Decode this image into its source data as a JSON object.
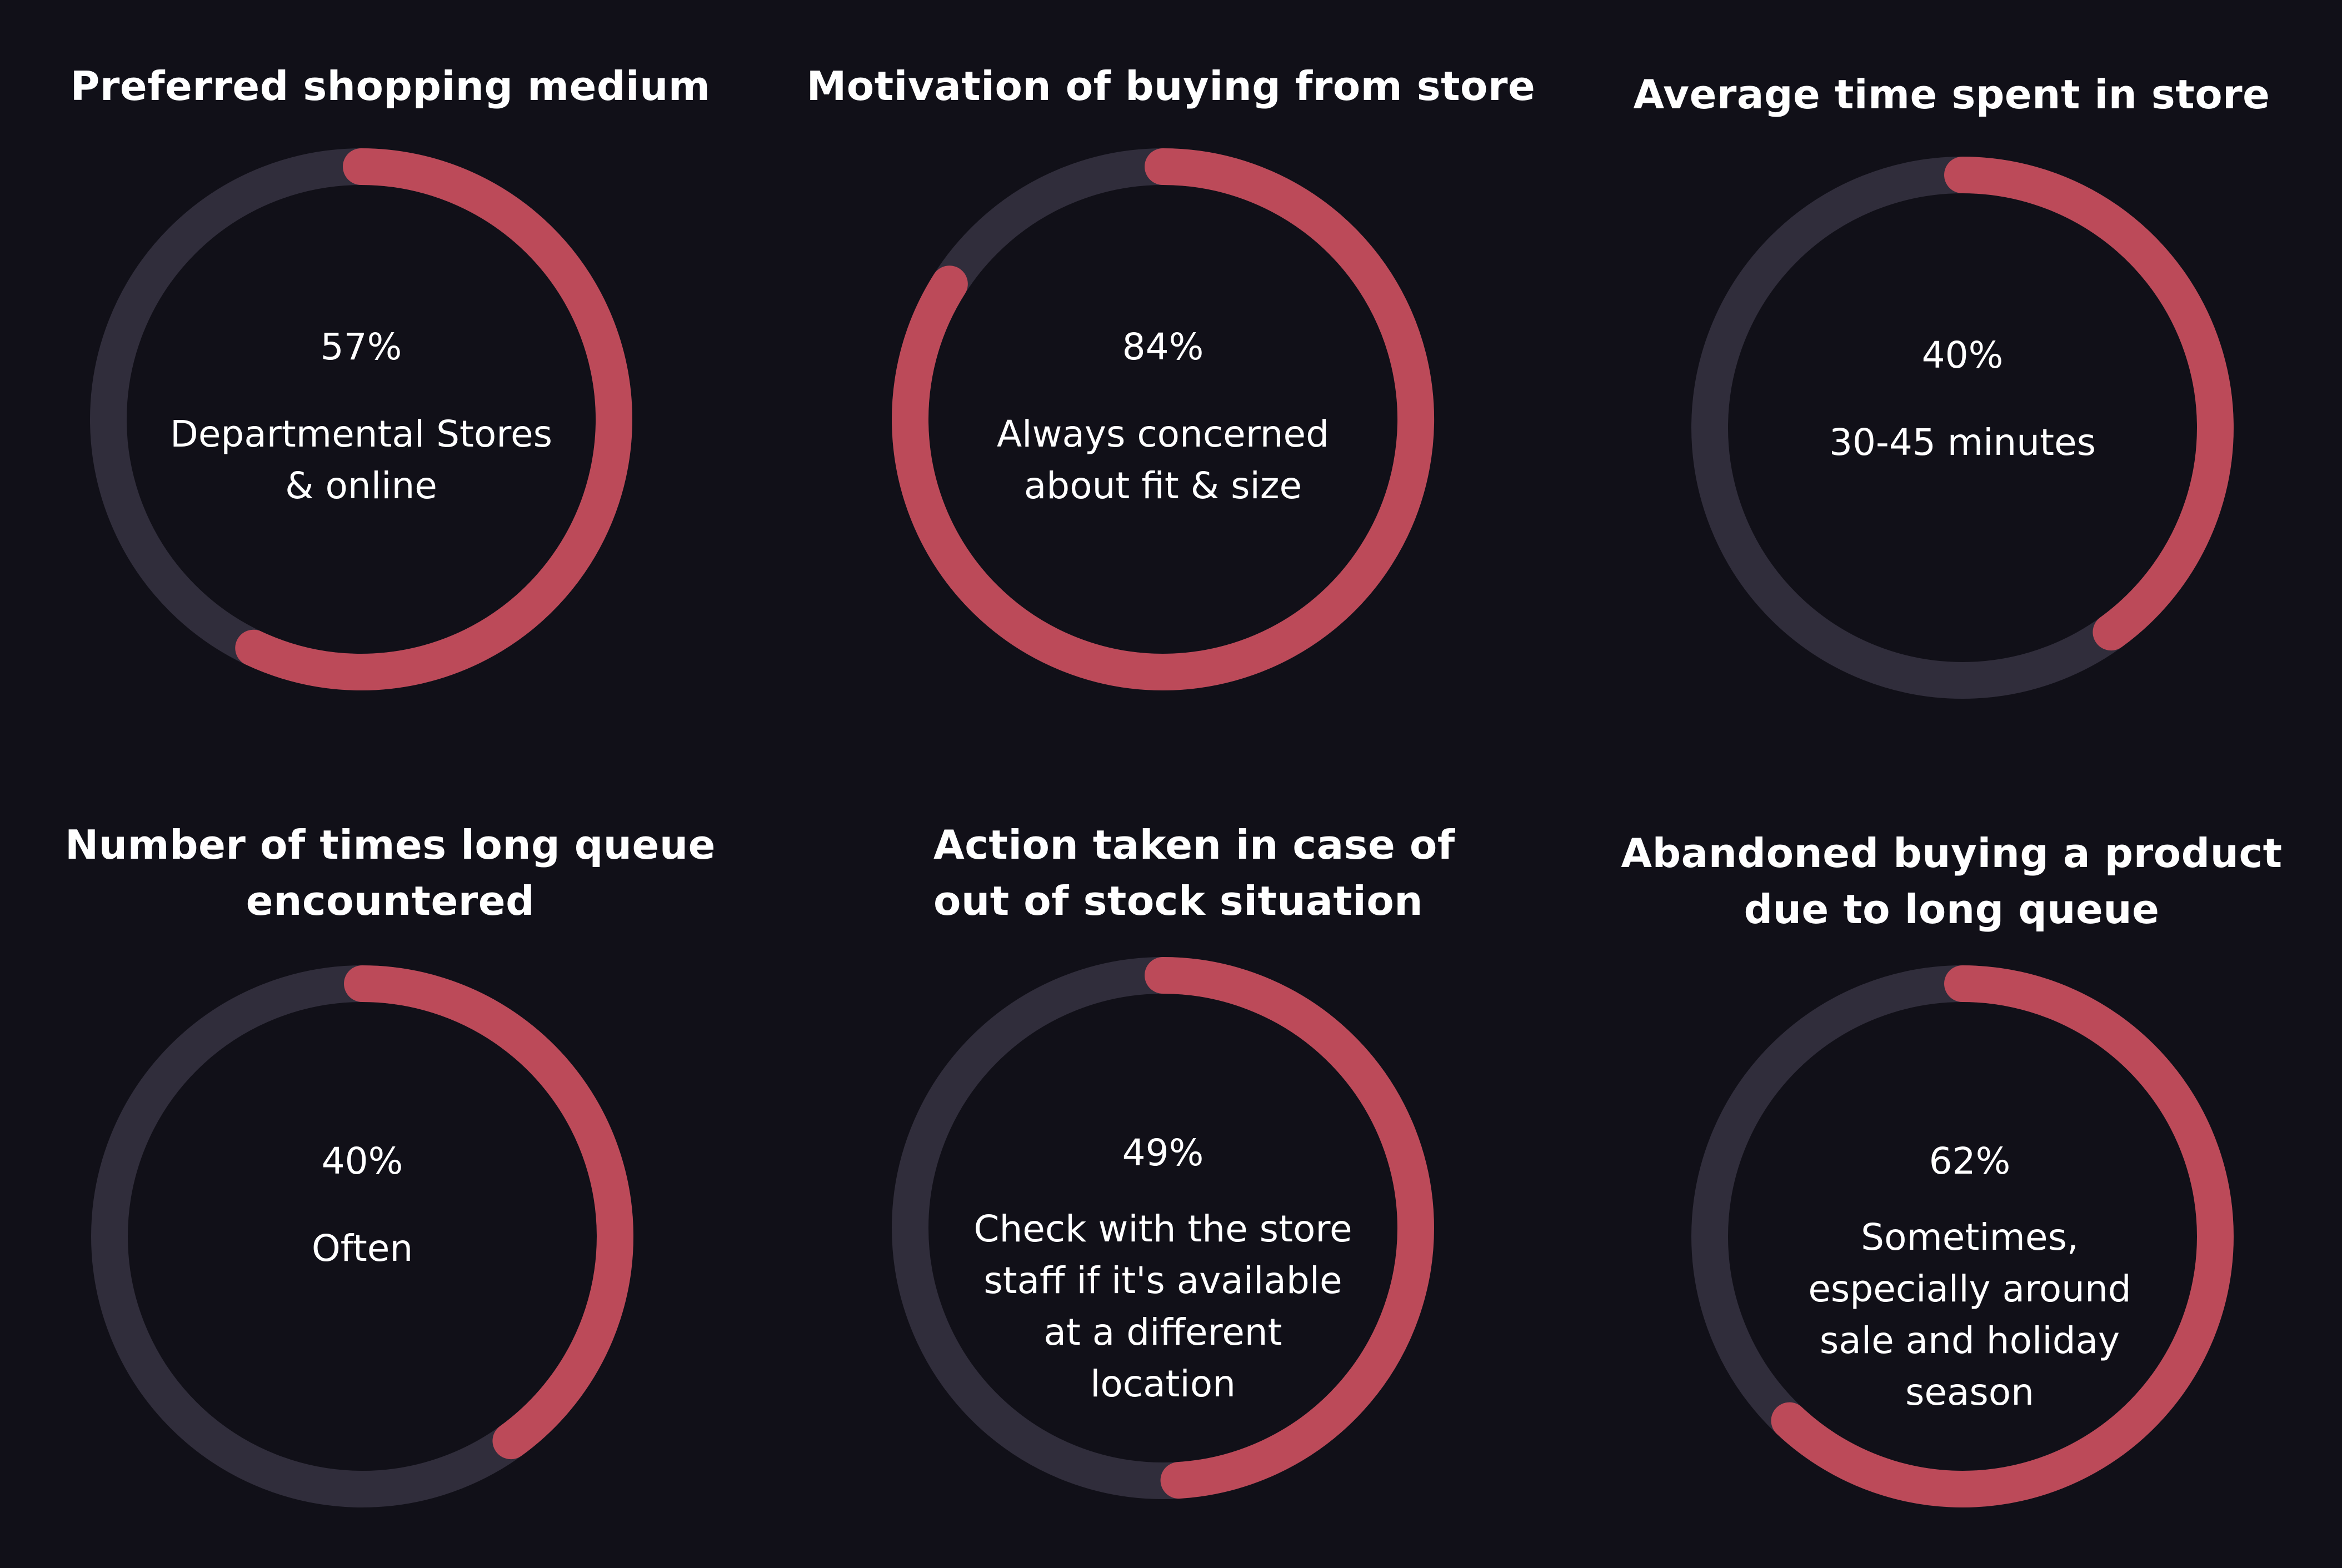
{
  "colors": {
    "background": "#111018",
    "track": "#302d3b",
    "progress": "#bc4a59",
    "text": "#ffffff"
  },
  "chart_data": [
    {
      "type": "donut",
      "title": "Preferred shopping medium",
      "value": 57,
      "value_label": "57%",
      "label": "Departmental Stores\n& online"
    },
    {
      "type": "donut",
      "title": "Motivation of buying from store",
      "value": 84,
      "value_label": "84%",
      "label": "Always concerned\nabout fit & size"
    },
    {
      "type": "donut",
      "title": "Average time spent in store",
      "value": 40,
      "value_label": "40%",
      "label": "30-45 minutes"
    },
    {
      "type": "donut",
      "title": "Number of times long queue\nencountered",
      "value": 40,
      "value_label": "40%",
      "label": "Often"
    },
    {
      "type": "donut",
      "title": "Action taken in case of\nout of stock situation",
      "value": 49,
      "value_label": "49%",
      "label": "Check with the store\nstaff if it's available\nat a different\nlocation"
    },
    {
      "type": "donut",
      "title": "Abandoned buying a product\ndue to long queue",
      "value": 62,
      "value_label": "62%",
      "label": "Sometimes,\nespecially around\nsale and holiday\nseason"
    }
  ]
}
